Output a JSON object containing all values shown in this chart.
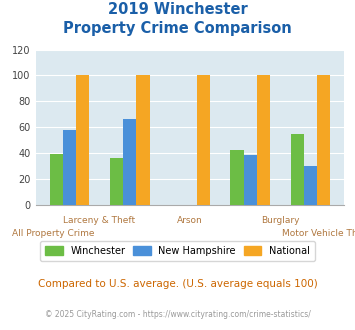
{
  "title_line1": "2019 Winchester",
  "title_line2": "Property Crime Comparison",
  "categories": [
    "All Property Crime",
    "Larceny & Theft",
    "Arson",
    "Burglary",
    "Motor Vehicle Theft"
  ],
  "winchester": [
    39,
    36,
    0,
    42,
    55
  ],
  "new_hampshire": [
    58,
    66,
    0,
    38,
    30
  ],
  "national": [
    100,
    100,
    100,
    100,
    100
  ],
  "color_winchester": "#6cbd45",
  "color_nh": "#4a90d9",
  "color_national": "#f5a623",
  "ylim": [
    0,
    120
  ],
  "yticks": [
    0,
    20,
    40,
    60,
    80,
    100,
    120
  ],
  "bg_color": "#dce9f0",
  "title_color": "#1a5fa8",
  "footnote_color": "#cc6600",
  "copyright_color": "#999999",
  "copyright_link_color": "#4a90d9",
  "footnote": "Compared to U.S. average. (U.S. average equals 100)",
  "copyright_text": "© 2025 CityRating.com - https://www.cityrating.com/crime-statistics/",
  "legend_labels": [
    "Winchester",
    "New Hampshire",
    "National"
  ],
  "xticklabel_color": "#b07840"
}
